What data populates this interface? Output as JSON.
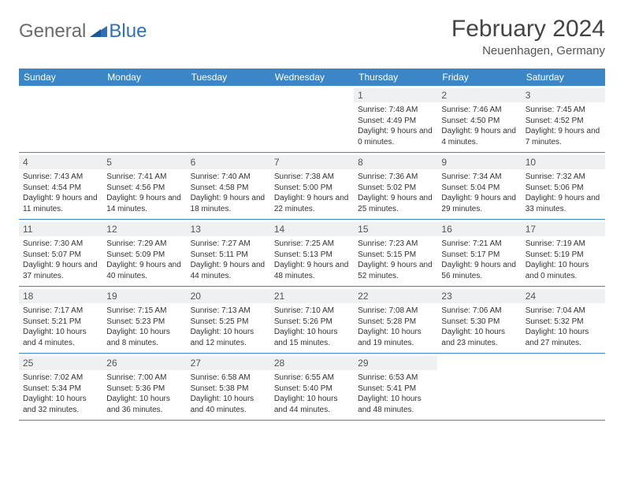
{
  "brand": {
    "name1": "General",
    "name2": "Blue"
  },
  "title": "February 2024",
  "subtitle": "Neuenhagen, Germany",
  "colors": {
    "header_bg": "#3b86c7",
    "header_text": "#ffffff",
    "daynum_bg": "#eef0f2",
    "border": "#3b86c7",
    "logo_gray": "#6b6b6b",
    "logo_blue": "#2d71b8"
  },
  "day_headers": [
    "Sunday",
    "Monday",
    "Tuesday",
    "Wednesday",
    "Thursday",
    "Friday",
    "Saturday"
  ],
  "weeks": [
    [
      {
        "day": "",
        "sunrise": "",
        "sunset": "",
        "daylight": ""
      },
      {
        "day": "",
        "sunrise": "",
        "sunset": "",
        "daylight": ""
      },
      {
        "day": "",
        "sunrise": "",
        "sunset": "",
        "daylight": ""
      },
      {
        "day": "",
        "sunrise": "",
        "sunset": "",
        "daylight": ""
      },
      {
        "day": "1",
        "sunrise": "Sunrise: 7:48 AM",
        "sunset": "Sunset: 4:49 PM",
        "daylight": "Daylight: 9 hours and 0 minutes."
      },
      {
        "day": "2",
        "sunrise": "Sunrise: 7:46 AM",
        "sunset": "Sunset: 4:50 PM",
        "daylight": "Daylight: 9 hours and 4 minutes."
      },
      {
        "day": "3",
        "sunrise": "Sunrise: 7:45 AM",
        "sunset": "Sunset: 4:52 PM",
        "daylight": "Daylight: 9 hours and 7 minutes."
      }
    ],
    [
      {
        "day": "4",
        "sunrise": "Sunrise: 7:43 AM",
        "sunset": "Sunset: 4:54 PM",
        "daylight": "Daylight: 9 hours and 11 minutes."
      },
      {
        "day": "5",
        "sunrise": "Sunrise: 7:41 AM",
        "sunset": "Sunset: 4:56 PM",
        "daylight": "Daylight: 9 hours and 14 minutes."
      },
      {
        "day": "6",
        "sunrise": "Sunrise: 7:40 AM",
        "sunset": "Sunset: 4:58 PM",
        "daylight": "Daylight: 9 hours and 18 minutes."
      },
      {
        "day": "7",
        "sunrise": "Sunrise: 7:38 AM",
        "sunset": "Sunset: 5:00 PM",
        "daylight": "Daylight: 9 hours and 22 minutes."
      },
      {
        "day": "8",
        "sunrise": "Sunrise: 7:36 AM",
        "sunset": "Sunset: 5:02 PM",
        "daylight": "Daylight: 9 hours and 25 minutes."
      },
      {
        "day": "9",
        "sunrise": "Sunrise: 7:34 AM",
        "sunset": "Sunset: 5:04 PM",
        "daylight": "Daylight: 9 hours and 29 minutes."
      },
      {
        "day": "10",
        "sunrise": "Sunrise: 7:32 AM",
        "sunset": "Sunset: 5:06 PM",
        "daylight": "Daylight: 9 hours and 33 minutes."
      }
    ],
    [
      {
        "day": "11",
        "sunrise": "Sunrise: 7:30 AM",
        "sunset": "Sunset: 5:07 PM",
        "daylight": "Daylight: 9 hours and 37 minutes."
      },
      {
        "day": "12",
        "sunrise": "Sunrise: 7:29 AM",
        "sunset": "Sunset: 5:09 PM",
        "daylight": "Daylight: 9 hours and 40 minutes."
      },
      {
        "day": "13",
        "sunrise": "Sunrise: 7:27 AM",
        "sunset": "Sunset: 5:11 PM",
        "daylight": "Daylight: 9 hours and 44 minutes."
      },
      {
        "day": "14",
        "sunrise": "Sunrise: 7:25 AM",
        "sunset": "Sunset: 5:13 PM",
        "daylight": "Daylight: 9 hours and 48 minutes."
      },
      {
        "day": "15",
        "sunrise": "Sunrise: 7:23 AM",
        "sunset": "Sunset: 5:15 PM",
        "daylight": "Daylight: 9 hours and 52 minutes."
      },
      {
        "day": "16",
        "sunrise": "Sunrise: 7:21 AM",
        "sunset": "Sunset: 5:17 PM",
        "daylight": "Daylight: 9 hours and 56 minutes."
      },
      {
        "day": "17",
        "sunrise": "Sunrise: 7:19 AM",
        "sunset": "Sunset: 5:19 PM",
        "daylight": "Daylight: 10 hours and 0 minutes."
      }
    ],
    [
      {
        "day": "18",
        "sunrise": "Sunrise: 7:17 AM",
        "sunset": "Sunset: 5:21 PM",
        "daylight": "Daylight: 10 hours and 4 minutes."
      },
      {
        "day": "19",
        "sunrise": "Sunrise: 7:15 AM",
        "sunset": "Sunset: 5:23 PM",
        "daylight": "Daylight: 10 hours and 8 minutes."
      },
      {
        "day": "20",
        "sunrise": "Sunrise: 7:13 AM",
        "sunset": "Sunset: 5:25 PM",
        "daylight": "Daylight: 10 hours and 12 minutes."
      },
      {
        "day": "21",
        "sunrise": "Sunrise: 7:10 AM",
        "sunset": "Sunset: 5:26 PM",
        "daylight": "Daylight: 10 hours and 15 minutes."
      },
      {
        "day": "22",
        "sunrise": "Sunrise: 7:08 AM",
        "sunset": "Sunset: 5:28 PM",
        "daylight": "Daylight: 10 hours and 19 minutes."
      },
      {
        "day": "23",
        "sunrise": "Sunrise: 7:06 AM",
        "sunset": "Sunset: 5:30 PM",
        "daylight": "Daylight: 10 hours and 23 minutes."
      },
      {
        "day": "24",
        "sunrise": "Sunrise: 7:04 AM",
        "sunset": "Sunset: 5:32 PM",
        "daylight": "Daylight: 10 hours and 27 minutes."
      }
    ],
    [
      {
        "day": "25",
        "sunrise": "Sunrise: 7:02 AM",
        "sunset": "Sunset: 5:34 PM",
        "daylight": "Daylight: 10 hours and 32 minutes."
      },
      {
        "day": "26",
        "sunrise": "Sunrise: 7:00 AM",
        "sunset": "Sunset: 5:36 PM",
        "daylight": "Daylight: 10 hours and 36 minutes."
      },
      {
        "day": "27",
        "sunrise": "Sunrise: 6:58 AM",
        "sunset": "Sunset: 5:38 PM",
        "daylight": "Daylight: 10 hours and 40 minutes."
      },
      {
        "day": "28",
        "sunrise": "Sunrise: 6:55 AM",
        "sunset": "Sunset: 5:40 PM",
        "daylight": "Daylight: 10 hours and 44 minutes."
      },
      {
        "day": "29",
        "sunrise": "Sunrise: 6:53 AM",
        "sunset": "Sunset: 5:41 PM",
        "daylight": "Daylight: 10 hours and 48 minutes."
      },
      {
        "day": "",
        "sunrise": "",
        "sunset": "",
        "daylight": ""
      },
      {
        "day": "",
        "sunrise": "",
        "sunset": "",
        "daylight": ""
      }
    ]
  ]
}
